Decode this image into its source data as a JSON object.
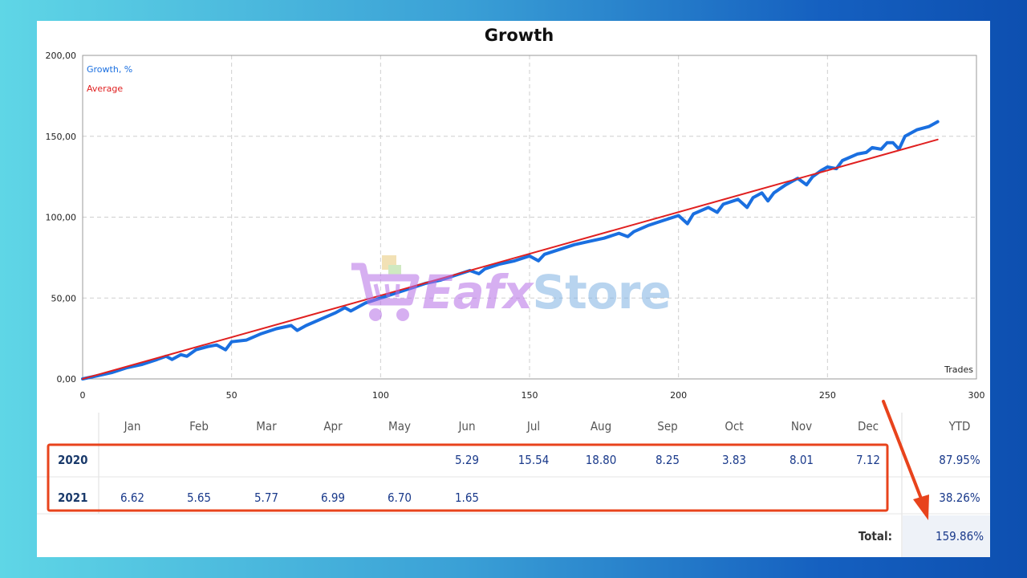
{
  "chart_data": {
    "type": "line",
    "title": "Growth",
    "xlabel": "Trades",
    "xlim": [
      0,
      300
    ],
    "ylim": [
      0,
      200
    ],
    "x_ticks": [
      "0",
      "50",
      "100",
      "150",
      "200",
      "250",
      "300"
    ],
    "y_ticks": [
      "0,00",
      "50,00",
      "100,00",
      "150,00",
      "200,00"
    ],
    "grid": true,
    "legend_position": "top-left",
    "series": [
      {
        "name": "Growth, %",
        "color": "#1a6fe0",
        "points": [
          [
            0,
            0
          ],
          [
            5,
            2
          ],
          [
            10,
            4
          ],
          [
            15,
            7
          ],
          [
            20,
            9
          ],
          [
            25,
            12
          ],
          [
            28,
            14
          ],
          [
            30,
            12
          ],
          [
            33,
            15
          ],
          [
            35,
            14
          ],
          [
            38,
            18
          ],
          [
            42,
            20
          ],
          [
            45,
            21
          ],
          [
            48,
            18
          ],
          [
            50,
            23
          ],
          [
            55,
            24
          ],
          [
            60,
            28
          ],
          [
            65,
            31
          ],
          [
            70,
            33
          ],
          [
            72,
            30
          ],
          [
            75,
            33
          ],
          [
            80,
            37
          ],
          [
            85,
            41
          ],
          [
            88,
            44
          ],
          [
            90,
            42
          ],
          [
            95,
            47
          ],
          [
            100,
            50
          ],
          [
            105,
            53
          ],
          [
            110,
            56
          ],
          [
            115,
            59
          ],
          [
            120,
            61
          ],
          [
            125,
            64
          ],
          [
            130,
            67
          ],
          [
            133,
            65
          ],
          [
            135,
            68
          ],
          [
            140,
            71
          ],
          [
            145,
            73
          ],
          [
            150,
            76
          ],
          [
            153,
            73
          ],
          [
            155,
            77
          ],
          [
            160,
            80
          ],
          [
            165,
            83
          ],
          [
            170,
            85
          ],
          [
            175,
            87
          ],
          [
            180,
            90
          ],
          [
            183,
            88
          ],
          [
            185,
            91
          ],
          [
            190,
            95
          ],
          [
            195,
            98
          ],
          [
            200,
            101
          ],
          [
            203,
            96
          ],
          [
            205,
            102
          ],
          [
            210,
            106
          ],
          [
            213,
            103
          ],
          [
            215,
            108
          ],
          [
            220,
            111
          ],
          [
            223,
            106
          ],
          [
            225,
            112
          ],
          [
            228,
            115
          ],
          [
            230,
            110
          ],
          [
            232,
            115
          ],
          [
            236,
            120
          ],
          [
            240,
            124
          ],
          [
            243,
            120
          ],
          [
            245,
            125
          ],
          [
            248,
            129
          ],
          [
            250,
            131
          ],
          [
            253,
            130
          ],
          [
            255,
            135
          ],
          [
            260,
            139
          ],
          [
            263,
            140
          ],
          [
            265,
            143
          ],
          [
            268,
            142
          ],
          [
            270,
            146
          ],
          [
            272,
            146
          ],
          [
            274,
            142
          ],
          [
            276,
            150
          ],
          [
            280,
            154
          ],
          [
            284,
            156
          ],
          [
            287,
            159
          ]
        ]
      },
      {
        "name": "Average",
        "color": "#e02020",
        "points": [
          [
            0,
            0
          ],
          [
            287,
            148
          ]
        ]
      }
    ]
  },
  "table": {
    "months": [
      "Jan",
      "Feb",
      "Mar",
      "Apr",
      "May",
      "Jun",
      "Jul",
      "Aug",
      "Sep",
      "Oct",
      "Nov",
      "Dec"
    ],
    "ytd_label": "YTD",
    "rows": [
      {
        "year": "2020",
        "values": [
          "",
          "",
          "",
          "",
          "",
          "5.29",
          "15.54",
          "18.80",
          "8.25",
          "3.83",
          "8.01",
          "7.12"
        ],
        "ytd": "87.95%"
      },
      {
        "year": "2021",
        "values": [
          "6.62",
          "5.65",
          "5.77",
          "6.99",
          "6.70",
          "1.65",
          "",
          "",
          "",
          "",
          "",
          ""
        ],
        "ytd": "38.26%"
      }
    ],
    "total_label": "Total:",
    "total_value": "159.86%"
  },
  "watermark": {
    "part1": "Eafx",
    "part2": "Store"
  },
  "colors": {
    "highlight": "#e8431c",
    "table_text": "#1a3a6b",
    "value_text": "#1a3a8b"
  }
}
